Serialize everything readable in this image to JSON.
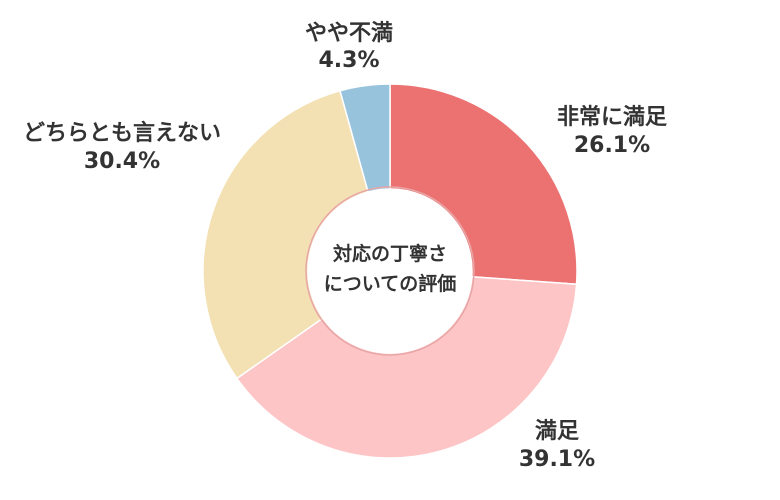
{
  "chart_data": {
    "type": "pie",
    "variant": "donut",
    "center_label": [
      "対応の丁寧さ",
      "についての評価"
    ],
    "slices": [
      {
        "label": "非常に満足",
        "value": 26.1,
        "value_label": "26.1%",
        "color": "#ec7272"
      },
      {
        "label": "満足",
        "value": 39.1,
        "value_label": "39.1%",
        "color": "#fdc5c6"
      },
      {
        "label": "どちらとも言えない",
        "value": 30.4,
        "value_label": "30.4%",
        "color": "#f3e1b4"
      },
      {
        "label": "やや不満",
        "value": 4.3,
        "value_label": "4.3%",
        "color": "#97c3dc"
      }
    ]
  }
}
